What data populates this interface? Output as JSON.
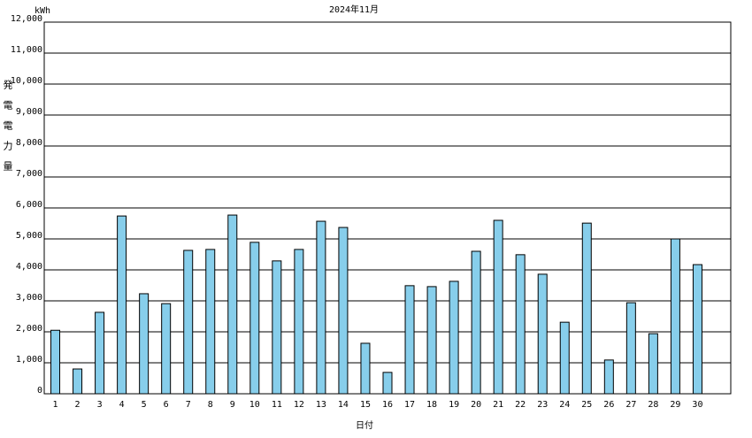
{
  "chart_data": {
    "type": "bar",
    "title": "2024年11月",
    "y_unit": "kWh",
    "y_label": "発電電力量",
    "x_label": "日付",
    "categories": [
      "1",
      "2",
      "3",
      "4",
      "5",
      "6",
      "7",
      "8",
      "9",
      "10",
      "11",
      "12",
      "13",
      "14",
      "15",
      "16",
      "17",
      "18",
      "19",
      "20",
      "21",
      "22",
      "23",
      "24",
      "25",
      "26",
      "27",
      "28",
      "29",
      "30"
    ],
    "values": [
      2050,
      800,
      2630,
      5740,
      3230,
      2910,
      4630,
      4660,
      5770,
      4890,
      4290,
      4660,
      5570,
      5370,
      1630,
      690,
      3490,
      3460,
      3630,
      4600,
      5600,
      4490,
      3860,
      2310,
      5510,
      1090,
      2940,
      1940,
      5000,
      4170
    ],
    "color": "#87ceeb",
    "ylim": [
      0,
      12000
    ],
    "yticks": [
      0,
      {
        "value": 1000,
        "label": "1,000"
      },
      {
        "value": 2000,
        "label": "2,000"
      },
      {
        "value": 3000,
        "label": "3,000"
      },
      {
        "value": 4000,
        "label": "4,000"
      },
      {
        "value": 5000,
        "label": "5,000"
      },
      {
        "value": 6000,
        "label": "6,000"
      },
      {
        "value": 7000,
        "label": "7,000"
      },
      {
        "value": 8000,
        "label": "8,000"
      },
      {
        "value": 9000,
        "label": "9,000"
      },
      {
        "value": 10000,
        "label": "10,000"
      },
      {
        "value": 11000,
        "label": "11,000"
      },
      {
        "value": 12000,
        "label": "12,000"
      }
    ],
    "grid": true
  }
}
